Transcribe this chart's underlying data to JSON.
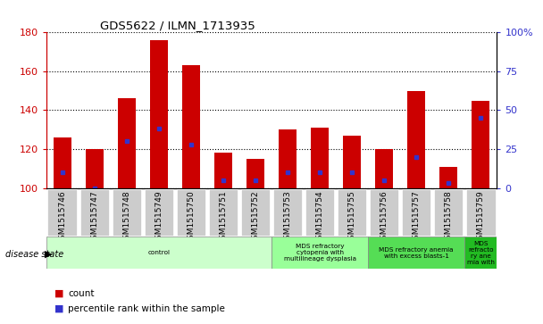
{
  "title": "GDS5622 / ILMN_1713935",
  "samples": [
    "GSM1515746",
    "GSM1515747",
    "GSM1515748",
    "GSM1515749",
    "GSM1515750",
    "GSM1515751",
    "GSM1515752",
    "GSM1515753",
    "GSM1515754",
    "GSM1515755",
    "GSM1515756",
    "GSM1515757",
    "GSM1515758",
    "GSM1515759"
  ],
  "counts": [
    126,
    120,
    146,
    176,
    163,
    118,
    115,
    130,
    131,
    127,
    120,
    150,
    111,
    145
  ],
  "percentile_ranks": [
    10,
    0,
    30,
    38,
    28,
    5,
    5,
    10,
    10,
    10,
    5,
    20,
    3,
    45
  ],
  "ymin": 100,
  "ymax": 180,
  "y_ticks": [
    100,
    120,
    140,
    160,
    180
  ],
  "right_yticks": [
    0,
    25,
    50,
    75,
    100
  ],
  "bar_color": "#cc0000",
  "dot_color": "#3333cc",
  "bar_width": 0.55,
  "disease_groups": [
    {
      "label": "control",
      "start": 0,
      "end": 7,
      "color": "#ccffcc"
    },
    {
      "label": "MDS refractory\ncytopenia with\nmultilineage dysplasia",
      "start": 7,
      "end": 10,
      "color": "#99ff99"
    },
    {
      "label": "MDS refractory anemia\nwith excess blasts-1",
      "start": 10,
      "end": 13,
      "color": "#55dd55"
    },
    {
      "label": "MDS\nrefracto\nry ane\nmia with",
      "start": 13,
      "end": 14,
      "color": "#22bb22"
    }
  ],
  "axis_color_left": "#cc0000",
  "axis_color_right": "#3333cc",
  "legend_count_color": "#cc0000",
  "legend_pct_color": "#3333cc",
  "tick_bg_color": "#cccccc",
  "grid_color": "#000000"
}
